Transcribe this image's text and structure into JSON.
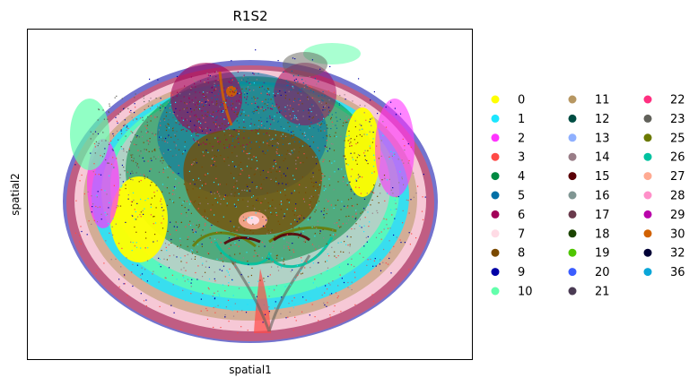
{
  "chart_data": {
    "type": "scatter",
    "title": "R1S2",
    "xlabel": "spatial1",
    "ylabel": "spatial2",
    "grid": false,
    "ticks": false,
    "legend_position": "right",
    "legend_columns": 3,
    "series": [
      {
        "name": "0",
        "color": "#ffff00"
      },
      {
        "name": "1",
        "color": "#1ce6ff"
      },
      {
        "name": "2",
        "color": "#ff34ff"
      },
      {
        "name": "3",
        "color": "#ff4a46"
      },
      {
        "name": "4",
        "color": "#008941"
      },
      {
        "name": "5",
        "color": "#006fa6"
      },
      {
        "name": "6",
        "color": "#a30059"
      },
      {
        "name": "7",
        "color": "#ffdbe5"
      },
      {
        "name": "8",
        "color": "#7a4900"
      },
      {
        "name": "9",
        "color": "#0000a6"
      },
      {
        "name": "10",
        "color": "#63ffac"
      },
      {
        "name": "11",
        "color": "#b79762"
      },
      {
        "name": "12",
        "color": "#004d43"
      },
      {
        "name": "13",
        "color": "#8fb0ff"
      },
      {
        "name": "14",
        "color": "#997d87"
      },
      {
        "name": "15",
        "color": "#5a0007"
      },
      {
        "name": "16",
        "color": "#809693"
      },
      {
        "name": "17",
        "color": "#6a3a4c"
      },
      {
        "name": "18",
        "color": "#1b4400"
      },
      {
        "name": "19",
        "color": "#4fc601"
      },
      {
        "name": "20",
        "color": "#3b5dff"
      },
      {
        "name": "21",
        "color": "#4a3b53"
      },
      {
        "name": "22",
        "color": "#ff2f80"
      },
      {
        "name": "23",
        "color": "#61615a"
      },
      {
        "name": "25",
        "color": "#6b7900"
      },
      {
        "name": "26",
        "color": "#00c2a0"
      },
      {
        "name": "27",
        "color": "#ffaa92"
      },
      {
        "name": "28",
        "color": "#ff90c9"
      },
      {
        "name": "29",
        "color": "#b903aa"
      },
      {
        "name": "30",
        "color": "#d16100"
      },
      {
        "name": "32",
        "color": "#000035"
      },
      {
        "name": "36",
        "color": "#0aa6d8"
      }
    ]
  }
}
